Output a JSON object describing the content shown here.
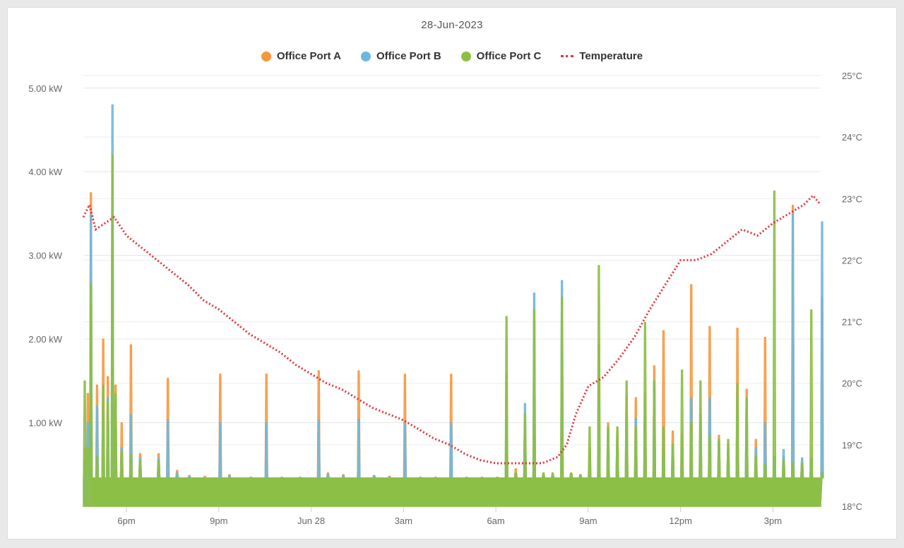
{
  "chart_data": {
    "type": "area",
    "title": "28-Jun-2023",
    "legend": [
      {
        "name": "Office Port A",
        "color": "#f7963d",
        "marker": "dot"
      },
      {
        "name": "Office Port B",
        "color": "#6cb8dc",
        "marker": "dot"
      },
      {
        "name": "Office Port C",
        "color": "#8cbf44",
        "marker": "dot"
      },
      {
        "name": "Temperature",
        "color": "#e8323c",
        "marker": "dotted-line"
      }
    ],
    "legend_position": "top",
    "grid": true,
    "x_axis": {
      "type": "time",
      "range_hours": [
        16.6,
        16.55
      ],
      "ticks": [
        {
          "label": "6pm",
          "hour": 18
        },
        {
          "label": "9pm",
          "hour": 21
        },
        {
          "label": "Jun 28",
          "hour": 24
        },
        {
          "label": "3am",
          "hour": 27
        },
        {
          "label": "6am",
          "hour": 30
        },
        {
          "label": "9am",
          "hour": 33
        },
        {
          "label": "12pm",
          "hour": 36
        },
        {
          "label": "3pm",
          "hour": 39
        }
      ],
      "start_hour": 16.6,
      "end_hour": 40.55
    },
    "y_left": {
      "ylim": [
        0,
        5.0
      ],
      "ticks": [
        {
          "label": "1.00 kW",
          "value": 1.0
        },
        {
          "label": "2.00 kW",
          "value": 2.0
        },
        {
          "label": "3.00 kW",
          "value": 3.0
        },
        {
          "label": "4.00 kW",
          "value": 4.0
        },
        {
          "label": "5.00 kW",
          "value": 5.0
        }
      ]
    },
    "y_right": {
      "ylim": [
        18,
        25
      ],
      "ticks": [
        {
          "label": "18°C",
          "value": 18
        },
        {
          "label": "19°C",
          "value": 19
        },
        {
          "label": "20°C",
          "value": 20
        },
        {
          "label": "21°C",
          "value": 21
        },
        {
          "label": "22°C",
          "value": 22
        },
        {
          "label": "23°C",
          "value": 23
        },
        {
          "label": "24°C",
          "value": 24
        },
        {
          "label": "25°C",
          "value": 25
        }
      ]
    },
    "series": [
      {
        "name": "Office Port A",
        "axis": "left",
        "hour": [
          16.6,
          16.7,
          16.8,
          17.0,
          17.2,
          17.35,
          17.5,
          17.6,
          17.8,
          18.1,
          18.4,
          19.0,
          19.3,
          19.6,
          20.0,
          20.5,
          21.0,
          21.3,
          22.0,
          22.5,
          23.0,
          23.6,
          24.2,
          24.5,
          25.0,
          25.5,
          26.0,
          26.5,
          27.0,
          27.5,
          28.0,
          28.5,
          29.0,
          29.5,
          30.0,
          30.3,
          30.6,
          30.9,
          31.2,
          31.5,
          31.8,
          32.1,
          32.4,
          32.7,
          33.0,
          33.3,
          33.6,
          33.9,
          34.2,
          34.5,
          34.8,
          35.1,
          35.4,
          35.7,
          36.0,
          36.3,
          36.6,
          36.9,
          37.2,
          37.5,
          37.8,
          38.1,
          38.4,
          38.7,
          39.0,
          39.3,
          39.6,
          39.9,
          40.2,
          40.55
        ],
        "values": [
          0.7,
          1.35,
          3.75,
          1.45,
          2.0,
          1.55,
          3.4,
          1.45,
          1.0,
          1.93,
          0.63,
          0.63,
          1.53,
          0.43,
          0.37,
          0.36,
          1.58,
          0.38,
          0.35,
          1.58,
          0.35,
          0.35,
          1.62,
          0.4,
          0.38,
          1.62,
          0.37,
          0.36,
          1.58,
          0.35,
          0.35,
          1.58,
          0.35,
          0.35,
          0.35,
          1.58,
          0.45,
          0.95,
          0.85,
          0.37,
          0.37,
          1.58,
          0.4,
          0.38,
          0.7,
          1.93,
          1.0,
          0.9,
          1.33,
          1.3,
          1.35,
          1.68,
          2.1,
          0.9,
          0.87,
          2.65,
          1.1,
          2.15,
          0.85,
          0.75,
          2.13,
          1.4,
          0.8,
          2.02,
          0.55,
          0.6,
          3.6,
          0.55,
          0.55,
          2.5
        ]
      },
      {
        "name": "Office Port B",
        "axis": "left",
        "hour": [
          16.6,
          16.7,
          16.8,
          17.0,
          17.2,
          17.35,
          17.5,
          17.6,
          17.8,
          18.1,
          18.4,
          19.0,
          19.3,
          19.6,
          20.0,
          20.5,
          21.0,
          21.3,
          22.0,
          22.5,
          23.0,
          23.6,
          24.2,
          24.5,
          25.0,
          25.5,
          26.0,
          26.5,
          27.0,
          27.5,
          28.0,
          28.5,
          29.0,
          29.5,
          30.0,
          30.3,
          30.6,
          30.9,
          31.2,
          31.5,
          31.8,
          32.1,
          32.4,
          32.7,
          33.0,
          33.3,
          33.6,
          33.9,
          34.2,
          34.5,
          34.8,
          35.1,
          35.4,
          35.7,
          36.0,
          36.3,
          36.6,
          36.9,
          37.2,
          37.5,
          37.8,
          38.1,
          38.4,
          38.7,
          39.0,
          39.3,
          39.6,
          39.9,
          40.2,
          40.55
        ],
        "values": [
          0.55,
          1.0,
          3.5,
          1.2,
          1.3,
          1.3,
          4.8,
          1.25,
          0.7,
          1.1,
          0.58,
          0.58,
          1.03,
          0.4,
          0.36,
          0.34,
          1.0,
          0.36,
          0.34,
          1.0,
          0.34,
          0.34,
          1.03,
          0.38,
          0.37,
          1.04,
          0.37,
          0.35,
          1.0,
          0.34,
          0.34,
          1.0,
          0.34,
          0.34,
          0.34,
          1.04,
          0.4,
          1.23,
          2.55,
          0.36,
          0.36,
          2.7,
          0.38,
          0.36,
          0.65,
          1.25,
          0.95,
          0.85,
          1.0,
          1.05,
          1.2,
          1.5,
          0.95,
          0.7,
          0.7,
          1.3,
          1.0,
          1.3,
          0.8,
          0.7,
          1.35,
          1.3,
          0.7,
          1.0,
          0.6,
          0.68,
          3.5,
          0.58,
          0.58,
          3.4
        ]
      },
      {
        "name": "Office Port C",
        "axis": "left",
        "hour": [
          16.6,
          16.7,
          16.8,
          17.0,
          17.2,
          17.35,
          17.5,
          17.6,
          17.8,
          18.1,
          18.4,
          19.0,
          19.3,
          19.6,
          20.0,
          20.5,
          21.0,
          21.3,
          22.0,
          22.5,
          23.0,
          23.6,
          24.2,
          24.5,
          25.0,
          25.5,
          26.0,
          26.5,
          27.0,
          27.5,
          28.0,
          28.5,
          29.0,
          29.5,
          30.0,
          30.3,
          30.6,
          30.9,
          31.2,
          31.5,
          31.8,
          32.1,
          32.4,
          32.7,
          33.0,
          33.3,
          33.6,
          33.9,
          34.2,
          34.5,
          34.8,
          35.1,
          35.4,
          35.7,
          36.0,
          36.3,
          36.6,
          36.9,
          37.2,
          37.5,
          37.8,
          38.1,
          38.4,
          38.7,
          39.0,
          39.3,
          39.6,
          39.9,
          40.2,
          40.55
        ],
        "values": [
          1.5,
          0.7,
          2.65,
          0.6,
          1.45,
          1.25,
          4.2,
          1.35,
          0.65,
          0.62,
          0.55,
          0.55,
          0.35,
          0.35,
          0.34,
          0.34,
          0.34,
          0.34,
          0.34,
          0.34,
          0.34,
          0.34,
          0.34,
          0.35,
          0.35,
          0.34,
          0.34,
          0.34,
          0.34,
          0.34,
          0.34,
          0.34,
          0.34,
          0.34,
          0.34,
          2.27,
          0.4,
          1.1,
          2.35,
          0.4,
          0.4,
          2.5,
          0.4,
          0.38,
          0.95,
          2.88,
          0.95,
          0.95,
          1.5,
          0.95,
          2.2,
          1.5,
          0.95,
          0.75,
          1.63,
          1.0,
          1.5,
          0.85,
          0.8,
          0.8,
          1.47,
          1.3,
          0.6,
          0.5,
          3.77,
          0.55,
          0.52,
          0.52,
          2.35,
          0.4
        ]
      },
      {
        "name": "Temperature",
        "axis": "right",
        "hour": [
          16.6,
          16.8,
          17.0,
          17.3,
          17.6,
          18.0,
          18.5,
          19.0,
          19.5,
          20.0,
          20.5,
          21.0,
          21.5,
          22.0,
          22.5,
          23.0,
          23.5,
          24.0,
          24.5,
          25.0,
          25.5,
          26.0,
          26.5,
          27.0,
          27.5,
          28.0,
          28.5,
          29.0,
          29.5,
          30.0,
          30.5,
          31.0,
          31.5,
          32.0,
          32.3,
          32.6,
          33.0,
          33.5,
          34.0,
          34.5,
          35.0,
          35.5,
          36.0,
          36.5,
          37.0,
          37.5,
          38.0,
          38.5,
          39.0,
          39.5,
          40.0,
          40.3,
          40.55
        ],
        "values": [
          22.7,
          22.9,
          22.5,
          22.6,
          22.7,
          22.4,
          22.2,
          22.0,
          21.8,
          21.6,
          21.35,
          21.2,
          21.0,
          20.8,
          20.65,
          20.5,
          20.3,
          20.15,
          20.0,
          19.9,
          19.75,
          19.6,
          19.5,
          19.4,
          19.25,
          19.1,
          19.0,
          18.85,
          18.75,
          18.7,
          18.7,
          18.7,
          18.7,
          18.8,
          19.0,
          19.5,
          19.95,
          20.1,
          20.4,
          20.75,
          21.2,
          21.6,
          22.0,
          22.0,
          22.1,
          22.3,
          22.5,
          22.4,
          22.6,
          22.75,
          22.9,
          23.05,
          22.9
        ]
      }
    ]
  }
}
